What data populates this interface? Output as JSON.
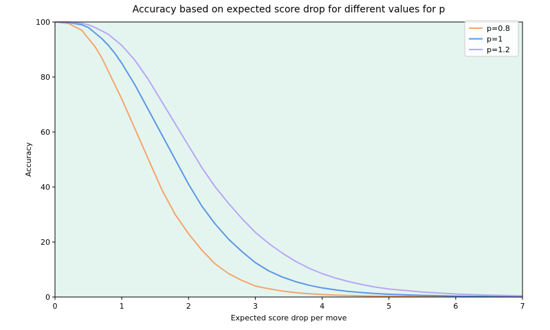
{
  "chart_data": {
    "type": "line",
    "title": "Accuracy based on expected score drop for different values for p",
    "xlabel": "Expected score drop per move",
    "ylabel": "Accuracy",
    "xlim": [
      0,
      7
    ],
    "ylim": [
      0,
      100
    ],
    "xticks": [
      0,
      1,
      2,
      3,
      4,
      5,
      6,
      7
    ],
    "yticks": [
      0,
      20,
      40,
      60,
      80,
      100
    ],
    "grid": false,
    "background": "#e4f5ef",
    "legend_position": "top-right",
    "x": [
      0,
      0.2,
      0.4,
      0.5,
      0.6,
      0.7,
      0.8,
      0.9,
      1.0,
      1.2,
      1.4,
      1.6,
      1.8,
      2.0,
      2.2,
      2.4,
      2.6,
      2.8,
      3.0,
      3.2,
      3.4,
      3.6,
      3.8,
      4.0,
      4.2,
      4.4,
      4.6,
      4.8,
      5.0,
      5.5,
      6.0,
      6.5,
      7.0
    ],
    "series": [
      {
        "name": "p=0.8",
        "color": "#f4a46e",
        "values": [
          100,
          99.5,
          97,
          94,
          91,
          87,
          82,
          77,
          72,
          61,
          50,
          39,
          30,
          23,
          17,
          12,
          8.5,
          6,
          4,
          3,
          2.2,
          1.6,
          1.2,
          0.9,
          0.7,
          0.55,
          0.45,
          0.35,
          0.3,
          0.2,
          0.12,
          0.08,
          0.05
        ]
      },
      {
        "name": "p=1",
        "color": "#5b96e6",
        "values": [
          100,
          99.8,
          99,
          98,
          96,
          94,
          91.5,
          88.5,
          85,
          77,
          68,
          59,
          50,
          41,
          33,
          26.5,
          21,
          16.5,
          12.5,
          9.5,
          7.3,
          5.6,
          4.3,
          3.3,
          2.6,
          2.0,
          1.6,
          1.25,
          1.0,
          0.6,
          0.35,
          0.22,
          0.14
        ]
      },
      {
        "name": "p=1.2",
        "color": "#b7a6f5",
        "values": [
          100,
          100,
          99.5,
          99,
          98,
          96.8,
          95.5,
          93.5,
          91.5,
          86,
          79,
          71,
          63,
          55,
          47,
          40,
          34,
          28.5,
          23.5,
          19.5,
          16,
          13,
          10.5,
          8.5,
          6.9,
          5.6,
          4.5,
          3.6,
          2.9,
          1.8,
          1.1,
          0.7,
          0.45
        ]
      }
    ]
  }
}
